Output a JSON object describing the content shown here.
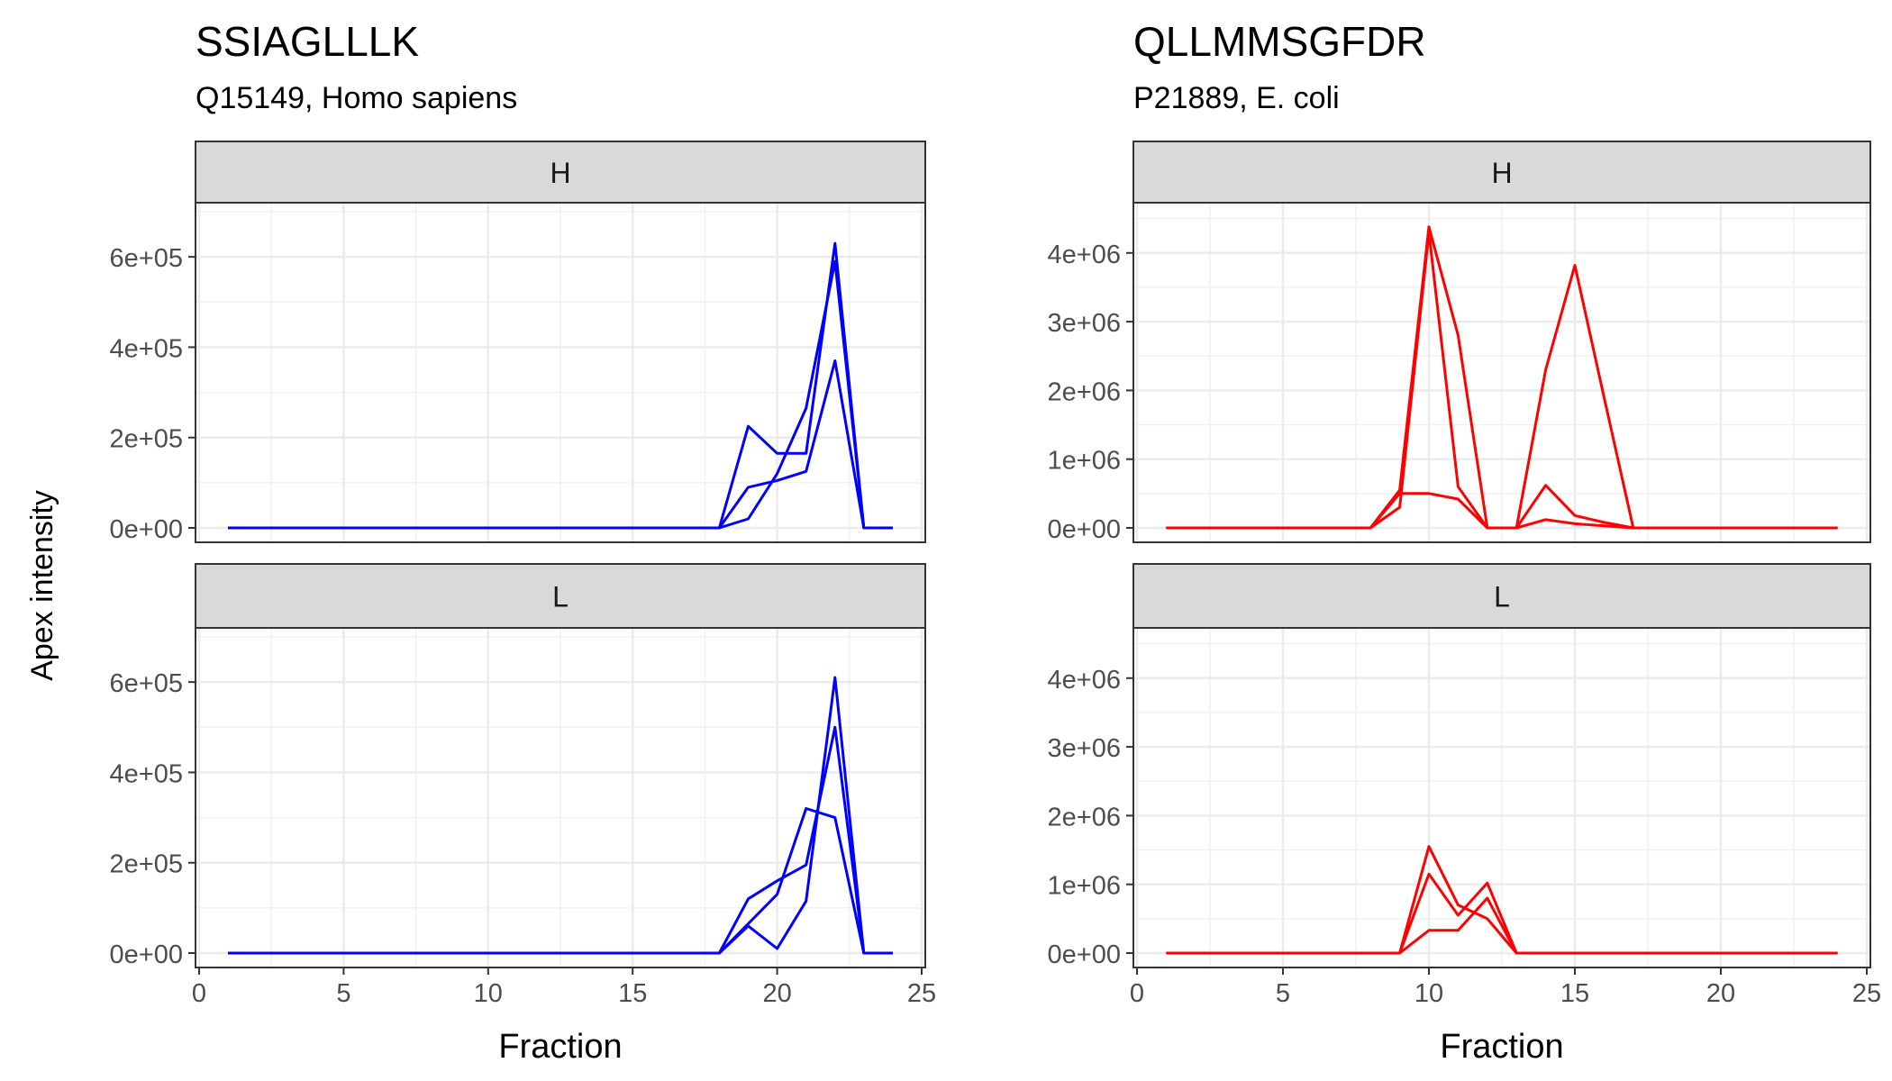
{
  "figure": {
    "ylabel": "Apex intensity",
    "xlabel": "Fraction"
  },
  "colors": {
    "left": "#0000ff",
    "right": "#ff0000"
  },
  "chart_data": [
    {
      "type": "line",
      "title": "SSIAGLLLK",
      "subtitle": "Q15149, Homo sapiens",
      "xlabel": "Fraction",
      "ylabel": "Apex intensity",
      "xlim": [
        0,
        25
      ],
      "xticks": [
        0,
        5,
        10,
        15,
        20,
        25
      ],
      "ylim": [
        0,
        700000
      ],
      "yticks": [
        0,
        200000,
        400000,
        600000
      ],
      "ytick_labels": [
        "0e+00",
        "2e+05",
        "4e+05",
        "6e+05"
      ],
      "color": "#0000ff",
      "panels": [
        {
          "strip": "H",
          "series": [
            {
              "x": [
                1,
                18,
                19,
                20,
                21,
                22,
                23,
                24
              ],
              "y": [
                0,
                0,
                225000,
                165000,
                165000,
                630000,
                0,
                0
              ]
            },
            {
              "x": [
                1,
                18,
                19,
                20,
                21,
                22,
                23,
                24
              ],
              "y": [
                0,
                0,
                90000,
                105000,
                125000,
                370000,
                0,
                0
              ]
            },
            {
              "x": [
                1,
                18,
                19,
                20,
                21,
                22,
                23,
                24
              ],
              "y": [
                0,
                0,
                20000,
                120000,
                265000,
                590000,
                0,
                0
              ]
            }
          ]
        },
        {
          "strip": "L",
          "series": [
            {
              "x": [
                1,
                18,
                19,
                20,
                21,
                22,
                23,
                24
              ],
              "y": [
                0,
                0,
                120000,
                160000,
                195000,
                500000,
                0,
                0
              ]
            },
            {
              "x": [
                1,
                18,
                19,
                20,
                21,
                22,
                23,
                24
              ],
              "y": [
                0,
                0,
                60000,
                10000,
                115000,
                610000,
                0,
                0
              ]
            },
            {
              "x": [
                1,
                18,
                19,
                20,
                21,
                22,
                23,
                24
              ],
              "y": [
                0,
                0,
                65000,
                130000,
                320000,
                300000,
                0,
                0
              ]
            }
          ]
        }
      ]
    },
    {
      "type": "line",
      "title": "QLLMMSGFDR",
      "subtitle": "P21889, E. coli",
      "xlabel": "Fraction",
      "ylabel": "Apex intensity",
      "xlim": [
        0,
        25
      ],
      "xticks": [
        0,
        5,
        10,
        15,
        20,
        25
      ],
      "ylim": [
        0,
        4600000
      ],
      "yticks": [
        0,
        1000000,
        2000000,
        3000000,
        4000000
      ],
      "ytick_labels": [
        "0e+00",
        "1e+06",
        "2e+06",
        "3e+06",
        "4e+06"
      ],
      "color": "#ff0000",
      "panels": [
        {
          "strip": "H",
          "series": [
            {
              "x": [
                1,
                8,
                9,
                10,
                11,
                12,
                13,
                14,
                15,
                16,
                17,
                18,
                24
              ],
              "y": [
                0,
                0,
                550000,
                4380000,
                2800000,
                0,
                0,
                2300000,
                3820000,
                1900000,
                0,
                0,
                0
              ]
            },
            {
              "x": [
                1,
                8,
                9,
                10,
                11,
                12,
                13,
                14,
                15,
                16,
                17,
                18,
                24
              ],
              "y": [
                0,
                0,
                500000,
                500000,
                420000,
                0,
                0,
                620000,
                180000,
                80000,
                0,
                0,
                0
              ]
            },
            {
              "x": [
                1,
                8,
                9,
                10,
                11,
                12,
                13,
                14,
                15,
                16,
                17,
                18,
                24
              ],
              "y": [
                0,
                0,
                300000,
                4300000,
                600000,
                0,
                0,
                120000,
                60000,
                30000,
                0,
                0,
                0
              ]
            }
          ]
        },
        {
          "strip": "L",
          "series": [
            {
              "x": [
                1,
                8,
                9,
                10,
                11,
                12,
                13,
                14,
                24
              ],
              "y": [
                0,
                0,
                0,
                1550000,
                700000,
                500000,
                0,
                0,
                0
              ]
            },
            {
              "x": [
                1,
                8,
                9,
                10,
                11,
                12,
                13,
                14,
                24
              ],
              "y": [
                0,
                0,
                0,
                1150000,
                550000,
                1020000,
                0,
                0,
                0
              ]
            },
            {
              "x": [
                1,
                8,
                9,
                10,
                11,
                12,
                13,
                14,
                24
              ],
              "y": [
                0,
                0,
                0,
                330000,
                330000,
                800000,
                0,
                0,
                0
              ]
            }
          ]
        }
      ]
    }
  ]
}
